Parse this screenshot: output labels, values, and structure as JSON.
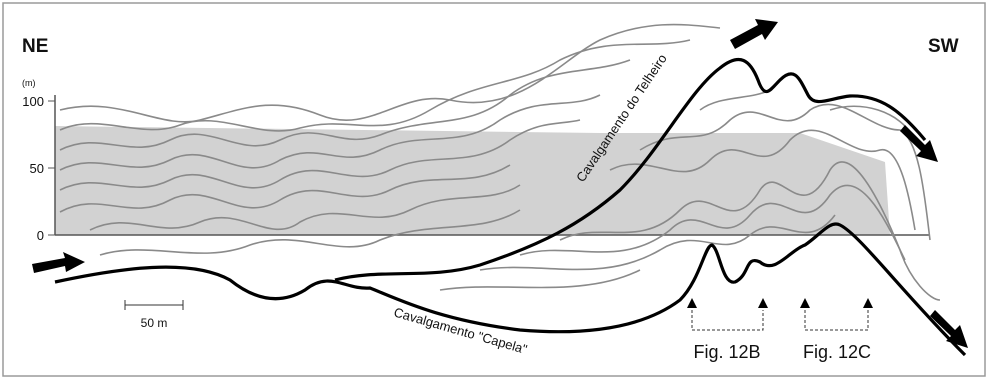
{
  "labels": {
    "left_direction": "NE",
    "right_direction": "SW",
    "axis_unit": "(m)",
    "axis_ticks": [
      100,
      50,
      0
    ],
    "scale_bar": "50 m",
    "thrust_upper": "Cavalgamento do Telheiro",
    "thrust_lower": "Cavalgamento \"Capela\"",
    "figure_refs": [
      "Fig. 12B",
      "Fig. 12C"
    ]
  }
}
